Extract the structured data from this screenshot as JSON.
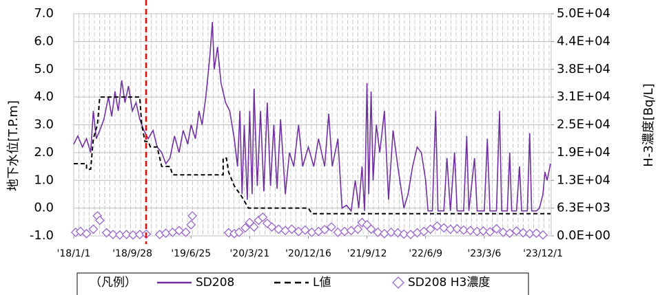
{
  "chart_data": {
    "type": "line",
    "ylabel": "地下水位[T.P.m]",
    "y2label": "H-3濃度[Bq/L]",
    "legend_title": "（凡例）",
    "legend": "bottom",
    "grid": true,
    "xlim": [
      "2018-01-01",
      "2024-01-08"
    ],
    "xticks": [
      {
        "value": "2018-01-01",
        "label": "'18/1/1"
      },
      {
        "value": "2018-09-28",
        "label": "'18/9/28"
      },
      {
        "value": "2019-06-25",
        "label": "'19/6/25"
      },
      {
        "value": "2020-03-21",
        "label": "'20/3/21"
      },
      {
        "value": "2020-12-16",
        "label": "'20/12/16"
      },
      {
        "value": "2021-09-12",
        "label": "'21/9/12"
      },
      {
        "value": "2022-06-09",
        "label": "'22/6/9"
      },
      {
        "value": "2023-03-06",
        "label": "'23/3/6"
      },
      {
        "value": "2023-12-01",
        "label": "'23/12/1"
      }
    ],
    "ylim": [
      -1,
      7
    ],
    "yticks": [
      {
        "value": -1,
        "label": "-1.0"
      },
      {
        "value": 0,
        "label": "0.0"
      },
      {
        "value": 1,
        "label": "1.0"
      },
      {
        "value": 2,
        "label": "2.0"
      },
      {
        "value": 3,
        "label": "3.0"
      },
      {
        "value": 4,
        "label": "4.0"
      },
      {
        "value": 5,
        "label": "5.0"
      },
      {
        "value": 6,
        "label": "6.0"
      },
      {
        "value": 7,
        "label": "7.0"
      }
    ],
    "y2lim": [
      0,
      50000
    ],
    "y2ticks": [
      {
        "value": 0,
        "label": "0.0E+00"
      },
      {
        "value": 6250,
        "label": "6.3E+03"
      },
      {
        "value": 12500,
        "label": "1.3E+04"
      },
      {
        "value": 18750,
        "label": "1.9E+04"
      },
      {
        "value": 25000,
        "label": "2.5E+04"
      },
      {
        "value": 31250,
        "label": "3.1E+04"
      },
      {
        "value": 37500,
        "label": "3.8E+04"
      },
      {
        "value": 43750,
        "label": "4.4E+04"
      },
      {
        "value": 50000,
        "label": "5.0E+04"
      }
    ],
    "reference_line": {
      "x": "2018-11-30",
      "color": "#ff0000"
    },
    "series": [
      {
        "name": "SD208",
        "color": "#7030a0",
        "style": "solid",
        "x": [
          "2018-01-01",
          "2018-01-20",
          "2018-02-10",
          "2018-03-01",
          "2018-03-20",
          "2018-04-01",
          "2018-04-15",
          "2018-05-01",
          "2018-05-20",
          "2018-06-10",
          "2018-06-25",
          "2018-07-10",
          "2018-07-25",
          "2018-08-10",
          "2018-08-25",
          "2018-09-10",
          "2018-09-28",
          "2018-10-15",
          "2018-11-01",
          "2018-11-20",
          "2018-12-10",
          "2019-01-01",
          "2019-01-20",
          "2019-02-10",
          "2019-03-01",
          "2019-03-20",
          "2019-04-10",
          "2019-05-01",
          "2019-05-20",
          "2019-06-10",
          "2019-06-25",
          "2019-07-15",
          "2019-08-01",
          "2019-08-15",
          "2019-09-01",
          "2019-09-20",
          "2019-10-01",
          "2019-10-10",
          "2019-10-25",
          "2019-11-10",
          "2019-12-01",
          "2019-12-20",
          "2020-01-10",
          "2020-01-25",
          "2020-02-05",
          "2020-02-15",
          "2020-02-25",
          "2020-03-10",
          "2020-03-21",
          "2020-04-01",
          "2020-04-10",
          "2020-04-25",
          "2020-05-10",
          "2020-05-25",
          "2020-06-10",
          "2020-06-25",
          "2020-07-10",
          "2020-07-25",
          "2020-08-10",
          "2020-09-01",
          "2020-09-20",
          "2020-10-10",
          "2020-11-01",
          "2020-11-20",
          "2020-12-16",
          "2021-01-10",
          "2021-02-01",
          "2021-03-01",
          "2021-03-20",
          "2021-04-05",
          "2021-05-01",
          "2021-05-20",
          "2021-06-10",
          "2021-07-01",
          "2021-07-20",
          "2021-08-05",
          "2021-08-20",
          "2021-09-01",
          "2021-09-12",
          "2021-09-20",
          "2021-10-01",
          "2021-10-10",
          "2021-10-25",
          "2021-11-10",
          "2021-12-01",
          "2021-12-20",
          "2022-01-10",
          "2022-02-01",
          "2022-03-01",
          "2022-03-20",
          "2022-04-10",
          "2022-05-01",
          "2022-05-20",
          "2022-06-09",
          "2022-06-20",
          "2022-07-10",
          "2022-07-25",
          "2022-08-05",
          "2022-09-01",
          "2022-09-15",
          "2022-10-01",
          "2022-10-20",
          "2022-11-01",
          "2022-12-01",
          "2022-12-15",
          "2022-12-25",
          "2023-01-20",
          "2023-02-01",
          "2023-03-06",
          "2023-03-20",
          "2023-04-01",
          "2023-05-01",
          "2023-05-15",
          "2023-05-25",
          "2023-06-20",
          "2023-07-01",
          "2023-07-10",
          "2023-08-01",
          "2023-08-15",
          "2023-08-25",
          "2023-09-20",
          "2023-10-01",
          "2023-10-10",
          "2023-11-01",
          "2023-11-15",
          "2023-12-01",
          "2023-12-10",
          "2023-12-20",
          "2024-01-05"
        ],
        "values": [
          2.3,
          2.6,
          2.2,
          2.5,
          2.0,
          3.5,
          2.5,
          2.8,
          3.2,
          4.0,
          3.3,
          4.2,
          3.5,
          4.6,
          3.8,
          4.4,
          3.5,
          3.8,
          3.2,
          2.8,
          2.5,
          2.8,
          2.2,
          2.0,
          1.6,
          1.8,
          2.6,
          2.0,
          2.8,
          2.3,
          3.0,
          2.5,
          3.5,
          3.0,
          4.0,
          5.5,
          6.7,
          5.0,
          5.8,
          4.5,
          3.8,
          3.5,
          2.5,
          1.5,
          3.5,
          0.5,
          3.0,
          0.3,
          3.5,
          0.5,
          4.3,
          0.8,
          3.5,
          0.6,
          3.8,
          0.8,
          3.0,
          0.7,
          3.2,
          0.5,
          2.0,
          1.5,
          3.0,
          1.5,
          2.2,
          1.5,
          2.5,
          1.5,
          3.4,
          1.5,
          2.5,
          0.0,
          0.1,
          -0.1,
          1.0,
          0.0,
          1.5,
          -0.1,
          4.5,
          0.5,
          4.2,
          1.0,
          3.0,
          2.0,
          3.5,
          0.3,
          2.8,
          1.5,
          0.0,
          0.5,
          1.5,
          2.2,
          2.0,
          1.0,
          -0.1,
          -0.1,
          3.5,
          -0.1,
          -0.1,
          1.8,
          -0.1,
          2.0,
          -0.1,
          -0.1,
          2.6,
          -0.1,
          1.8,
          -0.1,
          -0.1,
          2.5,
          -0.1,
          -0.1,
          3.5,
          -0.1,
          -0.1,
          2.0,
          -0.1,
          -0.1,
          1.5,
          -0.1,
          -0.1,
          2.7,
          -0.1,
          -0.1,
          0.0,
          0.5,
          1.3,
          1.0,
          1.6
        ]
      },
      {
        "name": "L値",
        "color": "#000000",
        "style": "dashed",
        "x": [
          "2018-01-01",
          "2018-03-01",
          "2018-03-01",
          "2018-03-20",
          "2018-04-01",
          "2018-04-20",
          "2018-05-01",
          "2018-11-01",
          "2018-11-10",
          "2018-11-25",
          "2018-12-10",
          "2018-12-20",
          "2019-01-20",
          "2019-02-10",
          "2019-03-20",
          "2019-04-01",
          "2019-11-20",
          "2019-11-20",
          "2019-12-05",
          "2019-12-15",
          "2020-01-10",
          "2020-02-15",
          "2020-03-15",
          "2020-12-16",
          "2021-01-01",
          "2024-01-05"
        ],
        "values": [
          1.6,
          1.6,
          1.4,
          1.4,
          2.5,
          3.0,
          4.0,
          4.0,
          3.0,
          2.4,
          2.4,
          2.2,
          2.2,
          1.5,
          1.5,
          1.2,
          1.2,
          1.8,
          1.8,
          1.3,
          0.8,
          0.4,
          0.0,
          0.0,
          -0.2,
          -0.2
        ]
      },
      {
        "name": "SD208 H3濃度",
        "color": "#9966cc",
        "style": "marker",
        "axis": "y2",
        "x": [
          "2018-01-10",
          "2018-02-01",
          "2018-03-01",
          "2018-04-01",
          "2018-04-20",
          "2018-05-01",
          "2018-06-01",
          "2018-07-01",
          "2018-08-01",
          "2018-09-01",
          "2018-10-01",
          "2018-11-01",
          "2018-12-01",
          "2019-02-01",
          "2019-03-01",
          "2019-04-01",
          "2019-05-01",
          "2019-06-01",
          "2019-06-25",
          "2019-07-01",
          "2019-12-15",
          "2020-01-10",
          "2020-02-01",
          "2020-03-01",
          "2020-03-21",
          "2020-04-10",
          "2020-05-01",
          "2020-05-20",
          "2020-06-10",
          "2020-07-01",
          "2020-08-01",
          "2020-09-01",
          "2020-10-01",
          "2020-11-01",
          "2020-12-01",
          "2021-01-01",
          "2021-02-01",
          "2021-03-01",
          "2021-04-01",
          "2021-05-01",
          "2021-06-01",
          "2021-07-01",
          "2021-08-01",
          "2021-08-20",
          "2021-09-12",
          "2021-10-01",
          "2021-11-01",
          "2021-12-01",
          "2022-01-01",
          "2022-02-01",
          "2022-03-01",
          "2022-04-01",
          "2022-05-01",
          "2022-06-01",
          "2022-07-01",
          "2022-08-01",
          "2022-09-01",
          "2022-10-01",
          "2022-11-01",
          "2022-12-01",
          "2023-01-01",
          "2023-02-01",
          "2023-03-01",
          "2023-04-01",
          "2023-05-01",
          "2023-06-01",
          "2023-07-01",
          "2023-08-01",
          "2023-09-01",
          "2023-10-01",
          "2023-11-01",
          "2023-12-01"
        ],
        "values": [
          800,
          1000,
          500,
          1500,
          4500,
          3500,
          700,
          300,
          200,
          300,
          200,
          300,
          400,
          300,
          600,
          800,
          1200,
          800,
          2500,
          4500,
          700,
          500,
          800,
          1800,
          3000,
          2000,
          3500,
          4200,
          2800,
          2000,
          1500,
          1200,
          1500,
          1000,
          1300,
          800,
          1000,
          1400,
          2000,
          800,
          1000,
          1200,
          1500,
          3000,
          2500,
          1500,
          800,
          500,
          800,
          700,
          400,
          300,
          700,
          1000,
          1500,
          2200,
          1800,
          1500,
          1600,
          1300,
          1200,
          1000,
          1100,
          900,
          1600,
          800,
          600,
          1100,
          700,
          500,
          600,
          200
        ]
      }
    ]
  }
}
